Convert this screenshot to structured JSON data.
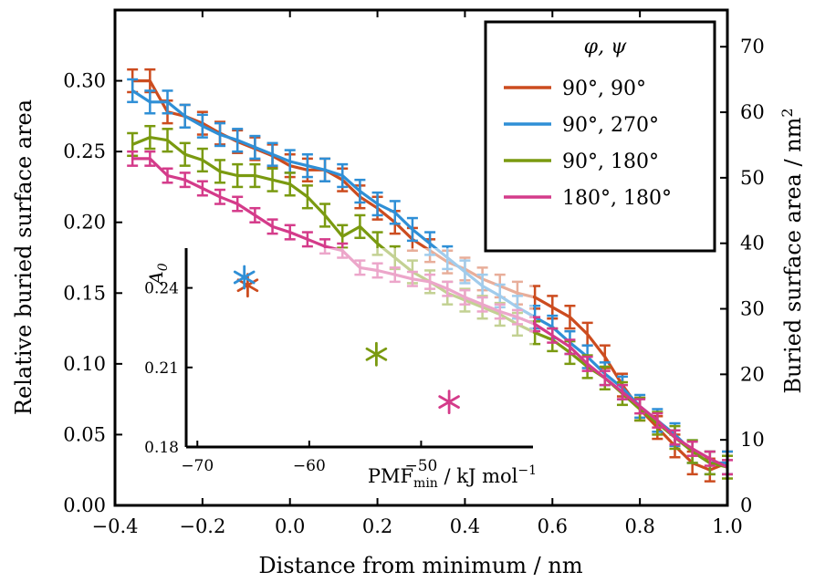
{
  "chart_data": {
    "type": "line",
    "xlabel": "Distance from minimum / nm",
    "ylabel": "Relative buried surface area",
    "ylabel_right": "Buried surface area / nm²",
    "xlim": [
      -0.4,
      1.0
    ],
    "ylim": [
      0.0,
      0.35
    ],
    "ylim_right": [
      0,
      75.6
    ],
    "xticks": [
      "−0.4",
      "−0.2",
      "0.0",
      "0.2",
      "0.4",
      "0.6",
      "0.8",
      "1.0"
    ],
    "yticks": [
      "0.00",
      "0.05",
      "0.10",
      "0.15",
      "0.20",
      "0.25",
      "0.30"
    ],
    "yticks_right": [
      "0",
      "10",
      "20",
      "30",
      "40",
      "50",
      "60",
      "70"
    ],
    "legend_title": "φ, ψ",
    "legend_position": "top-right",
    "x": [
      -0.36,
      -0.32,
      -0.28,
      -0.24,
      -0.2,
      -0.16,
      -0.12,
      -0.08,
      -0.04,
      0.0,
      0.04,
      0.08,
      0.12,
      0.16,
      0.2,
      0.24,
      0.28,
      0.32,
      0.36,
      0.4,
      0.44,
      0.48,
      0.52,
      0.56,
      0.6,
      0.64,
      0.68,
      0.72,
      0.76,
      0.8,
      0.84,
      0.88,
      0.92,
      0.96,
      1.0
    ],
    "series": [
      {
        "name": "90°, 90°",
        "color": "#cc4c1f",
        "values": [
          0.3,
          0.3,
          0.278,
          0.275,
          0.27,
          0.263,
          0.257,
          0.252,
          0.247,
          0.24,
          0.237,
          0.237,
          0.23,
          0.218,
          0.21,
          0.2,
          0.188,
          0.18,
          0.172,
          0.167,
          0.16,
          0.155,
          0.15,
          0.147,
          0.14,
          0.133,
          0.121,
          0.105,
          0.085,
          0.068,
          0.055,
          0.042,
          0.03,
          0.025,
          0.03
        ],
        "err": 0.008
      },
      {
        "name": "90°, 270°",
        "color": "#2f8fd6",
        "values": [
          0.293,
          0.285,
          0.285,
          0.275,
          0.268,
          0.262,
          0.258,
          0.253,
          0.248,
          0.243,
          0.24,
          0.237,
          0.233,
          0.222,
          0.213,
          0.207,
          0.195,
          0.185,
          0.175,
          0.165,
          0.155,
          0.148,
          0.14,
          0.133,
          0.126,
          0.115,
          0.105,
          0.093,
          0.083,
          0.07,
          0.06,
          0.05,
          0.038,
          0.03,
          0.03
        ],
        "err": 0.008
      },
      {
        "name": "90°, 180°",
        "color": "#7a9a10",
        "values": [
          0.255,
          0.26,
          0.258,
          0.248,
          0.244,
          0.236,
          0.233,
          0.233,
          0.23,
          0.227,
          0.218,
          0.205,
          0.19,
          0.197,
          0.185,
          0.175,
          0.165,
          0.158,
          0.15,
          0.145,
          0.14,
          0.135,
          0.128,
          0.122,
          0.117,
          0.108,
          0.098,
          0.09,
          0.079,
          0.068,
          0.058,
          0.048,
          0.038,
          0.03,
          0.027
        ],
        "err": 0.008
      },
      {
        "name": "180°, 180°",
        "color": "#d43b8a",
        "values": [
          0.245,
          0.245,
          0.233,
          0.23,
          0.224,
          0.218,
          0.213,
          0.205,
          0.197,
          0.193,
          0.188,
          0.183,
          0.18,
          0.168,
          0.166,
          0.163,
          0.16,
          0.158,
          0.153,
          0.147,
          0.142,
          0.137,
          0.133,
          0.128,
          0.12,
          0.112,
          0.1,
          0.09,
          0.08,
          0.07,
          0.06,
          0.048,
          0.04,
          0.033,
          0.027
        ],
        "err": 0.005
      }
    ],
    "inset": {
      "type": "scatter",
      "xlabel": "PMF",
      "xlabel_sub": "min",
      "xlabel_unit": " / kJ mol",
      "xlabel_sup": "−1",
      "ylabel": "A",
      "ylabel_sub": "0",
      "xlim": [
        -71,
        -40
      ],
      "ylim": [
        0.18,
        0.255
      ],
      "xticks": [
        "−70",
        "−60",
        "−50"
      ],
      "yticks": [
        "0.18",
        "0.21",
        "0.24"
      ],
      "points": [
        {
          "series": "90°, 90°",
          "color": "#cc4c1f",
          "x": -65.5,
          "y": 0.241
        },
        {
          "series": "90°, 270°",
          "color": "#2f8fd6",
          "x": -65.8,
          "y": 0.244
        },
        {
          "series": "90°, 180°",
          "color": "#7a9a10",
          "x": -54.0,
          "y": 0.215
        },
        {
          "series": "180°, 180°",
          "color": "#d43b8a",
          "x": -47.5,
          "y": 0.197
        }
      ]
    }
  }
}
